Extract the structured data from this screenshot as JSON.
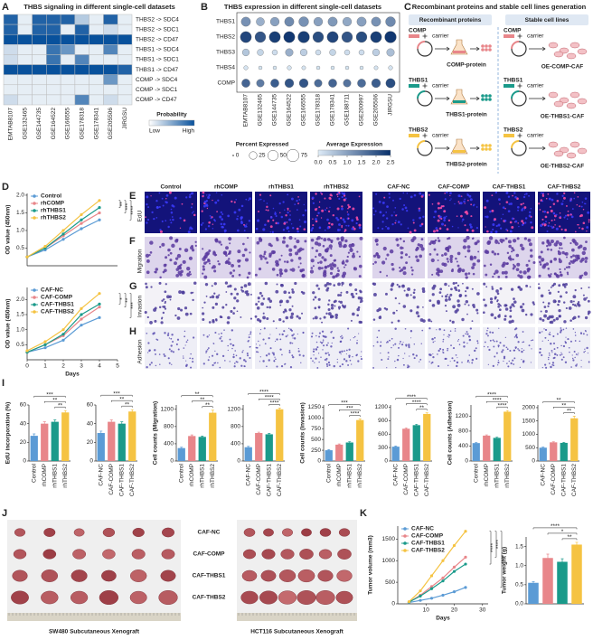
{
  "panel_labels": [
    "A",
    "B",
    "C",
    "D",
    "E",
    "F",
    "G",
    "H",
    "I",
    "J",
    "K"
  ],
  "chart_data": [
    {
      "type": "heatmap",
      "title": "THBS signaling in different single-cell datasets",
      "rows": [
        "THBS2 -> SDC4",
        "THBS2 -> SDC1",
        "THBS2 -> CD47",
        "THBS1 -> SDC4",
        "THBS1 -> SDC1",
        "THBS1 -> CD47",
        "COMP -> SDC4",
        "COMP -> SDC1",
        "COMP -> CD47"
      ],
      "columns": [
        "EMTAB8107",
        "GSE132465",
        "GSE144735",
        "GSE164522",
        "GSE166555",
        "GSE178318",
        "GSE178341",
        "GSE205506",
        "JIRGSU"
      ],
      "values": [
        [
          0.9,
          0.1,
          0.9,
          0.9,
          0.9,
          0.3,
          0.1,
          0.9,
          0.1
        ],
        [
          0.9,
          0.1,
          0.9,
          0.9,
          0.1,
          0.9,
          0.1,
          0.2,
          0.1
        ],
        [
          1,
          1,
          1,
          1,
          1,
          1,
          1,
          1,
          1
        ],
        [
          0.2,
          0.1,
          0.1,
          0.8,
          0.6,
          0.1,
          0.1,
          0.7,
          0.1
        ],
        [
          0.2,
          0.1,
          0.1,
          0.8,
          0.1,
          0.7,
          0.1,
          0.1,
          0.1
        ],
        [
          1,
          1,
          1,
          1,
          1,
          1,
          1,
          1,
          0.9
        ],
        [
          0.1,
          0.1,
          0.1,
          0.1,
          0.1,
          0.1,
          0.1,
          0.6,
          0.1
        ],
        [
          0.1,
          0.1,
          0.1,
          0.1,
          0.1,
          0.1,
          0.1,
          0.1,
          0.1
        ],
        [
          0.2,
          0.1,
          0.1,
          0.1,
          0.1,
          0.7,
          0.1,
          0.2,
          0.1
        ]
      ],
      "colorbar_title": "Probability",
      "colorbar_labels": [
        "Low",
        "High"
      ],
      "colors": [
        "#ffffff",
        "#08519c"
      ]
    },
    {
      "type": "dotplot",
      "title": "THBS expression in different single-cell datasets",
      "rows": [
        "THBS1",
        "THBS2",
        "THBS3",
        "THBS4",
        "COMP"
      ],
      "columns": [
        "EMTAB8107",
        "GSE132465",
        "GSE144735",
        "GSE164522",
        "GSE166555",
        "GSE178318",
        "GSE178341",
        "GSE188711",
        "GSE200997",
        "GSE205506",
        "JIRGSU"
      ],
      "percent": [
        [
          40,
          30,
          35,
          40,
          45,
          35,
          40,
          35,
          40,
          40,
          45
        ],
        [
          60,
          55,
          60,
          60,
          65,
          55,
          60,
          55,
          55,
          60,
          65
        ],
        [
          20,
          15,
          10,
          25,
          20,
          10,
          15,
          10,
          10,
          20,
          25
        ],
        [
          5,
          3,
          3,
          5,
          4,
          3,
          3,
          3,
          3,
          4,
          5
        ],
        [
          30,
          25,
          30,
          35,
          35,
          25,
          30,
          25,
          30,
          35,
          40
        ]
      ],
      "expression": [
        [
          1.2,
          0.8,
          1.0,
          1.3,
          1.2,
          1.0,
          1.1,
          0.9,
          1.0,
          1.2,
          1.3
        ],
        [
          2.2,
          2.0,
          2.3,
          2.4,
          2.3,
          2.1,
          2.2,
          2.0,
          2.1,
          2.3,
          2.4
        ],
        [
          0.5,
          0.3,
          0.2,
          0.8,
          0.4,
          0.2,
          0.3,
          0.2,
          0.2,
          0.4,
          0.6
        ],
        [
          0.1,
          0.1,
          0.1,
          0.1,
          0.1,
          0.1,
          0.1,
          0.1,
          0.1,
          0.1,
          0.1
        ],
        [
          1.8,
          1.5,
          1.9,
          2.0,
          2.0,
          1.7,
          1.8,
          1.6,
          1.7,
          1.9,
          2.1
        ]
      ],
      "size_title": "Percent Expressed",
      "size_ticks": [
        0,
        25,
        50,
        75
      ],
      "color_title": "Average Expression",
      "color_ticks": [
        {
          "value": 0,
          "label": "0.0"
        },
        0.5,
        {
          "value": 1,
          "label": "1.0"
        },
        1.5,
        {
          "value": 2,
          "label": "2.0"
        },
        2.5
      ],
      "colors": [
        "#deebf7",
        "#08306b"
      ]
    },
    {
      "type": "line",
      "ylabel": "OD value (450nm)",
      "x": [
        0,
        1,
        2,
        3,
        4
      ],
      "xlim": [
        0,
        5
      ],
      "ylim": [
        0,
        2.05
      ],
      "yticks": [
        0.5,
        {
          "value": 1,
          "label": "1.0"
        },
        1.5,
        {
          "value": 2,
          "label": "2.0"
        }
      ],
      "series": [
        {
          "name": "Control",
          "color": "#5b9bd5",
          "values": [
            0.25,
            0.45,
            0.75,
            1.05,
            1.3
          ]
        },
        {
          "name": "rhCOMP",
          "color": "#e8868a",
          "values": [
            0.25,
            0.5,
            0.85,
            1.2,
            1.5
          ]
        },
        {
          "name": "rhTHBS1",
          "color": "#1a9a8a",
          "values": [
            0.25,
            0.5,
            0.9,
            1.3,
            1.65
          ]
        },
        {
          "name": "rhTHBS2",
          "color": "#f5c342",
          "values": [
            0.25,
            0.55,
            1.0,
            1.45,
            1.85
          ]
        }
      ],
      "annotations": [
        "**",
        "***",
        "****"
      ]
    },
    {
      "type": "line",
      "ylabel": "OD value (450nm)",
      "xlabel": "Days",
      "x": [
        0,
        1,
        2,
        3,
        4
      ],
      "xlim": [
        0,
        5
      ],
      "xticks": [
        0,
        1,
        2,
        3,
        4,
        5
      ],
      "ylim": [
        0,
        2.4
      ],
      "yticks": [
        0.5,
        {
          "value": 1,
          "label": "1.0"
        },
        1.5,
        {
          "value": 2,
          "label": "2.0"
        }
      ],
      "series": [
        {
          "name": "CAF-NC",
          "color": "#5b9bd5",
          "values": [
            0.25,
            0.4,
            0.65,
            1.15,
            1.4
          ]
        },
        {
          "name": "CAF-COMP",
          "color": "#e8868a",
          "values": [
            0.25,
            0.5,
            0.8,
            1.35,
            1.75
          ]
        },
        {
          "name": "CAF-THBS1",
          "color": "#1a9a8a",
          "values": [
            0.25,
            0.5,
            0.85,
            1.5,
            1.85
          ]
        },
        {
          "name": "CAF-THBS2",
          "color": "#f5c342",
          "values": [
            0.3,
            0.6,
            1.0,
            1.7,
            2.2
          ]
        }
      ],
      "annotations": [
        "*",
        "**",
        "***"
      ]
    },
    {
      "type": "bar",
      "ylabel": "EdU incorporation (%)",
      "categories": [
        "Control",
        "rhCOMP",
        "rhTHBS1",
        "rhTHBS2"
      ],
      "values": [
        27,
        40,
        42,
        52
      ],
      "errors": [
        2,
        2,
        2,
        2
      ],
      "colors": [
        "#5b9bd5",
        "#e8868a",
        "#1a9a8a",
        "#f5c342"
      ],
      "ylim": [
        0,
        60
      ],
      "yticks": [
        0,
        20,
        40,
        60
      ],
      "annotations": [
        "***",
        "**",
        "**"
      ]
    },
    {
      "type": "bar",
      "categories": [
        "CAF-NC",
        "CAF-COMP",
        "CAF-THBS1",
        "CAF-THBS2"
      ],
      "values": [
        30,
        42,
        40,
        53
      ],
      "errors": [
        2,
        2,
        2,
        2
      ],
      "colors": [
        "#5b9bd5",
        "#e8868a",
        "#1a9a8a",
        "#f5c342"
      ],
      "ylim": [
        0,
        60
      ],
      "yticks": [
        0,
        20,
        40,
        60
      ],
      "annotations": [
        "***",
        "**",
        "**"
      ]
    },
    {
      "type": "bar",
      "ylabel": "Cell counts (Migration)",
      "categories": [
        "Control",
        "rhCOMP",
        "rhTHBS1",
        "rhTHBS2"
      ],
      "values": [
        300,
        580,
        560,
        1120
      ],
      "errors": [
        20,
        25,
        20,
        60
      ],
      "colors": [
        "#5b9bd5",
        "#e8868a",
        "#1a9a8a",
        "#f5c342"
      ],
      "ylim": [
        0,
        1300
      ],
      "yticks": [
        0,
        400,
        800,
        1200
      ],
      "annotations": [
        "**",
        "**",
        "**"
      ]
    },
    {
      "type": "bar",
      "categories": [
        "CAF-NC",
        "CAF-COMP",
        "CAF-THBS1",
        "CAF-THBS2"
      ],
      "values": [
        320,
        650,
        620,
        1200
      ],
      "errors": [
        20,
        20,
        20,
        30
      ],
      "colors": [
        "#5b9bd5",
        "#e8868a",
        "#1a9a8a",
        "#f5c342"
      ],
      "ylim": [
        0,
        1300
      ],
      "yticks": [
        0,
        400,
        800,
        1200
      ],
      "annotations": [
        "****",
        "****",
        "****"
      ]
    },
    {
      "type": "bar",
      "ylabel": "Cell counts (Invasion)",
      "categories": [
        "Control",
        "rhCOMP",
        "rhTHBS1",
        "rhTHBS2"
      ],
      "values": [
        250,
        380,
        430,
        950
      ],
      "errors": [
        15,
        15,
        20,
        25
      ],
      "colors": [
        "#5b9bd5",
        "#e8868a",
        "#1a9a8a",
        "#f5c342"
      ],
      "ylim": [
        0,
        1300
      ],
      "yticks": [
        0,
        250,
        500,
        750,
        1000,
        1250
      ],
      "annotations": [
        "***",
        "***",
        "****"
      ]
    },
    {
      "type": "bar",
      "categories": [
        "CAF-NC",
        "CAF-COMP",
        "CAF-THBS1",
        "CAF-THBS2"
      ],
      "values": [
        320,
        720,
        800,
        1050
      ],
      "errors": [
        15,
        20,
        20,
        25
      ],
      "colors": [
        "#5b9bd5",
        "#e8868a",
        "#1a9a8a",
        "#f5c342"
      ],
      "ylim": [
        0,
        1250
      ],
      "yticks": [
        0,
        300,
        600,
        900,
        1200
      ],
      "annotations": [
        "****",
        "****",
        "**"
      ]
    },
    {
      "type": "bar",
      "ylabel": "Cell counts (Adhesion)",
      "categories": [
        "Control",
        "rhCOMP",
        "rhTHBS1",
        "rhTHBS2"
      ],
      "values": [
        480,
        680,
        620,
        1320
      ],
      "errors": [
        20,
        20,
        20,
        30
      ],
      "colors": [
        "#5b9bd5",
        "#e8868a",
        "#1a9a8a",
        "#f5c342"
      ],
      "ylim": [
        0,
        1500
      ],
      "yticks": [
        0,
        400,
        800,
        1200
      ],
      "annotations": [
        "****",
        "****",
        "****"
      ]
    },
    {
      "type": "bar",
      "categories": [
        "CAF-NC",
        "CAF-COMP",
        "CAF-THBS1",
        "CAF-THBS2"
      ],
      "values": [
        500,
        700,
        680,
        1600
      ],
      "errors": [
        20,
        20,
        20,
        80
      ],
      "colors": [
        "#5b9bd5",
        "#e8868a",
        "#1a9a8a",
        "#f5c342"
      ],
      "ylim": [
        0,
        2100
      ],
      "yticks": [
        0,
        500,
        1000,
        1500,
        2000
      ],
      "annotations": [
        "**",
        "**",
        "**"
      ]
    },
    {
      "type": "line",
      "ylabel": "Tumor volume (mm3)",
      "xlabel": "Days",
      "x": [
        4,
        8,
        12,
        16,
        20,
        24
      ],
      "xlim": [
        0,
        32
      ],
      "xticks": [
        10,
        20,
        30
      ],
      "ylim": [
        0,
        1800
      ],
      "yticks": [
        0,
        500,
        1000,
        1500
      ],
      "series": [
        {
          "name": "CAF-NC",
          "color": "#5b9bd5",
          "values": [
            30,
            80,
            130,
            200,
            280,
            380
          ]
        },
        {
          "name": "CAF-COMP",
          "color": "#e8868a",
          "values": [
            40,
            200,
            400,
            600,
            850,
            1080
          ]
        },
        {
          "name": "CAF-THBS1",
          "color": "#1a9a8a",
          "values": [
            40,
            180,
            350,
            530,
            750,
            920
          ]
        },
        {
          "name": "CAF-THBS2",
          "color": "#f5c342",
          "values": [
            50,
            300,
            650,
            1000,
            1350,
            1680
          ]
        }
      ],
      "annotations": [
        "****",
        "****",
        "****"
      ]
    },
    {
      "type": "bar",
      "ylabel": "Tumor weight (g)",
      "values": [
        0.55,
        1.2,
        1.1,
        1.55
      ],
      "errors": [
        0.03,
        0.1,
        0.08,
        0.06
      ],
      "colors": [
        "#5b9bd5",
        "#e8868a",
        "#1a9a8a",
        "#f5c342"
      ],
      "ylim": [
        0,
        1.75
      ],
      "yticks": [
        {
          "value": 0,
          "label": "0.0"
        },
        0.5,
        {
          "value": 1,
          "label": "1.0"
        },
        1.5
      ],
      "annotations": [
        "****",
        "*",
        "**"
      ]
    }
  ],
  "diagram": {
    "title": "Recombinant proteins and stable cell lines generation",
    "left_title": "Recombinant proteins",
    "right_title": "Stable cell lines",
    "rows": [
      {
        "gene": "COMP",
        "carrier": "carrier",
        "protein": "COMP-protein",
        "cell_gene": "COMP",
        "cell_carrier": "carrier",
        "cell_line": "OE-COMP-CAF"
      },
      {
        "gene": "THBS1",
        "carrier": "carrier",
        "protein": "THBS1-protein",
        "cell_gene": "THBS1",
        "cell_carrier": "carrier",
        "cell_line": "OE-THBS1-CAF"
      },
      {
        "gene": "THBS2",
        "carrier": "carrier",
        "protein": "THBS2-protein",
        "cell_gene": "THBS2",
        "cell_carrier": "carrier",
        "cell_line": "OE-THBS2-CAF"
      }
    ]
  },
  "microscopy": {
    "columns": [
      "Control",
      "rhCOMP",
      "rhTHBS1",
      "rhTHBS2",
      "CAF-NC",
      "CAF-COMP",
      "CAF-THBS1",
      "CAF-THBS2"
    ],
    "rows": [
      "EdU",
      "Migration",
      "Invasion",
      "Adhesion"
    ]
  },
  "xenograft": {
    "groups": [
      "CAF-NC",
      "CAF-COMP",
      "CAF-THBS1",
      "CAF-THBS2"
    ],
    "captions": [
      "SW480 Subcutaneous Xenograft",
      "HCT116 Subcutaneous Xenograft"
    ]
  }
}
